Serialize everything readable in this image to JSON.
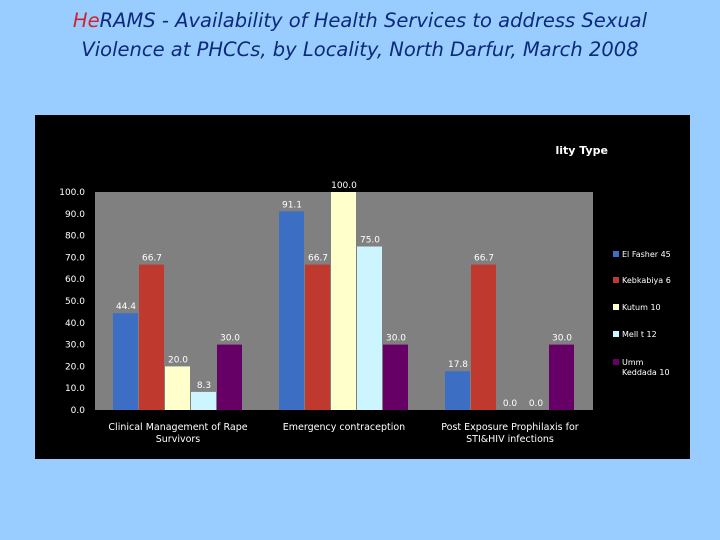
{
  "header": {
    "title_brand_he": "He",
    "title_brand_rams": "RAMS",
    "title_line1_rest": " -  Availability of Health Services to address Sexual",
    "title_line2": "Violence at PHCCs, by Locality, North Darfur, March 2008"
  },
  "chart_data": {
    "type": "bar",
    "title": "lity Type",
    "categories": [
      [
        "Clinical  Management of Rape",
        "Survivors"
      ],
      [
        "Emergency contraception"
      ],
      [
        "Post Exposure Prophilaxis for",
        "STI&HIV infections"
      ]
    ],
    "series": [
      {
        "name": "El Fasher 45",
        "values": [
          44.4,
          91.1,
          17.8
        ],
        "color": "#3c6fc4"
      },
      {
        "name": "Kebkabiya 6",
        "values": [
          66.7,
          66.7,
          66.7
        ],
        "color": "#c0392f"
      },
      {
        "name": "Kutum 10",
        "values": [
          20.0,
          100.0,
          0.0
        ],
        "color": "#ffffcc"
      },
      {
        "name": "Mell t 12",
        "values": [
          8.3,
          75.0,
          0.0
        ],
        "color": "#ccf5ff"
      },
      {
        "name": "Umm Keddada 10",
        "values": [
          30.0,
          30.0,
          30.0
        ],
        "color": "#660066"
      }
    ],
    "value_labels": [
      [
        "44.4",
        "91.1",
        "17.8"
      ],
      [
        "66.7",
        "66.7",
        "66.7"
      ],
      [
        "20.0",
        "100.0",
        "0.0"
      ],
      [
        "8.3",
        "75.0",
        "0.0"
      ],
      [
        "30.0",
        "30.0",
        "30.0"
      ]
    ],
    "legend_labels": [
      [
        "El Fasher 45"
      ],
      [
        "Kebkabiya 6"
      ],
      [
        "Kutum 10"
      ],
      [
        "Mell t 12"
      ],
      [
        "Umm",
        "Keddada 10"
      ]
    ],
    "y_ticks": [
      "0.0",
      "10.0",
      "20.0",
      "30.0",
      "40.0",
      "50.0",
      "60.0",
      "70.0",
      "80.0",
      "90.0",
      "100.0"
    ],
    "ylim": [
      0,
      100
    ],
    "grid": false,
    "legend_position": "right",
    "plot_background": "#808080",
    "panel_background": "#000000"
  }
}
